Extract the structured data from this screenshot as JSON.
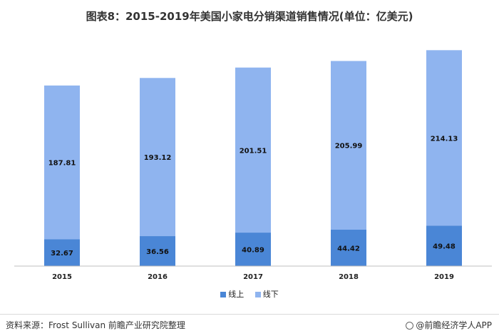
{
  "chart_data": {
    "type": "bar",
    "stacked": true,
    "title": "图表8：2015-2019年美国小家电分销渠道销售情况(单位：亿美元)",
    "categories": [
      "2015",
      "2016",
      "2017",
      "2018",
      "2019"
    ],
    "series": [
      {
        "name": "线上",
        "values": [
          32.67,
          36.56,
          40.89,
          44.42,
          49.48
        ],
        "color": "#4a86d6"
      },
      {
        "name": "线下",
        "values": [
          187.81,
          193.12,
          201.51,
          205.99,
          214.13
        ],
        "color": "#8fb4ef"
      }
    ],
    "ylim": [
      0,
      270
    ],
    "grid": false,
    "legend_position": "bottom-center"
  },
  "footer": {
    "source": "资料来源：Frost Sullivan 前瞻产业研究院整理",
    "brand": "@前瞻经济学人APP"
  }
}
